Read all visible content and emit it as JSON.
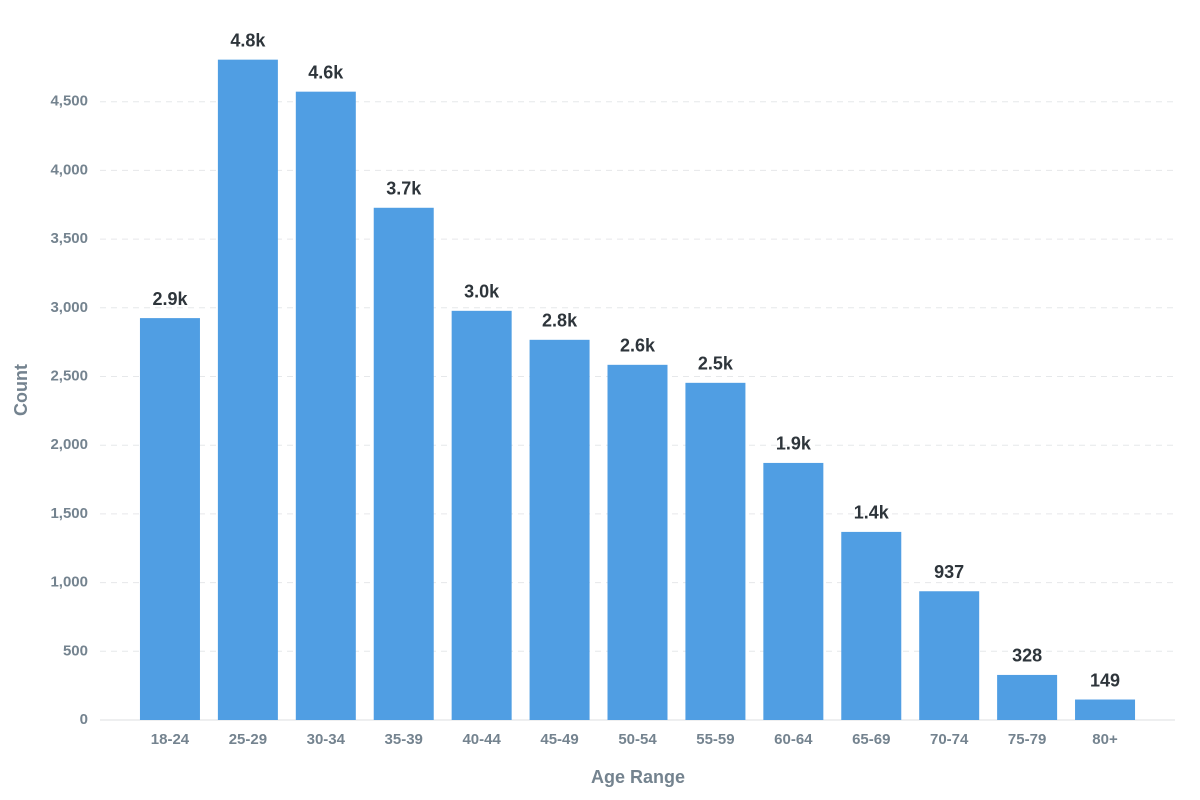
{
  "chart_data": {
    "type": "bar",
    "x_label": "Age Range",
    "y_label": "Count",
    "categories": [
      "18-24",
      "25-29",
      "30-34",
      "35-39",
      "40-44",
      "45-49",
      "50-54",
      "55-59",
      "60-64",
      "65-69",
      "70-74",
      "75-79",
      "80+"
    ],
    "values": [
      2925,
      4806,
      4573,
      3728,
      2978,
      2767,
      2585,
      2454,
      1871,
      1369,
      937,
      328,
      149
    ],
    "value_labels": [
      "2.9k",
      "4.8k",
      "4.6k",
      "3.7k",
      "3.0k",
      "2.8k",
      "2.6k",
      "2.5k",
      "1.9k",
      "1.4k",
      "937",
      "328",
      "149"
    ],
    "color": "#509ee3",
    "ylim": [
      0,
      5000
    ],
    "yticks": [
      0,
      500,
      {
        "value": 1000,
        "label": "1,000"
      },
      {
        "value": 1500,
        "label": "1,500"
      },
      {
        "value": 2000,
        "label": "2,000"
      },
      {
        "value": 2500,
        "label": "2,500"
      },
      {
        "value": 3000,
        "label": "3,000"
      },
      {
        "value": 3500,
        "label": "3,500"
      },
      {
        "value": 4000,
        "label": "4,000"
      },
      {
        "value": 4500,
        "label": "4,500"
      }
    ],
    "grid": true
  }
}
